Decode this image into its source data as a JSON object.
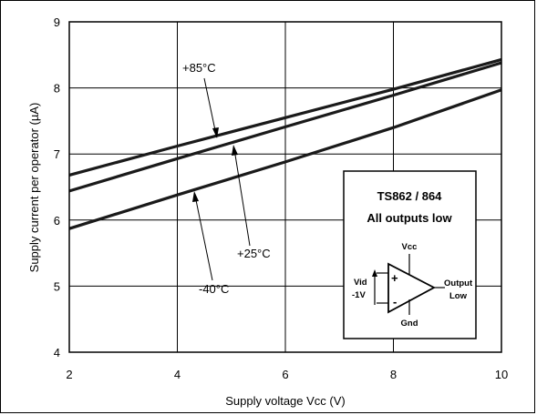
{
  "chart_data": {
    "type": "line",
    "xlabel": "Supply voltage Vcc (V)",
    "ylabel": "Supply current per operator (µA)",
    "xlim": [
      2,
      10
    ],
    "ylim": [
      4,
      9
    ],
    "xticks": [
      2,
      4,
      6,
      8,
      10
    ],
    "yticks": [
      4,
      5,
      6,
      7,
      8,
      9
    ],
    "grid": true,
    "series": [
      {
        "name": "+85°C",
        "x": [
          2,
          4,
          6,
          8,
          10
        ],
        "values": [
          6.68,
          7.12,
          7.55,
          7.98,
          8.43
        ]
      },
      {
        "name": "+25°C",
        "x": [
          2,
          4,
          6,
          8,
          10
        ],
        "values": [
          6.44,
          6.93,
          7.41,
          7.89,
          8.38
        ]
      },
      {
        "name": "-40°C",
        "x": [
          2,
          4,
          6,
          8,
          10
        ],
        "values": [
          5.87,
          6.38,
          6.88,
          7.4,
          7.97
        ]
      }
    ],
    "inset": {
      "title_line1": "TS862 / 864",
      "title_line2": "All outputs low",
      "vcc": "Vcc",
      "gnd": "Gnd",
      "vid": "Vid",
      "vid_value": "-1V",
      "output_line1": "Output",
      "output_line2": "Low",
      "plus": "+",
      "minus": "-"
    }
  }
}
